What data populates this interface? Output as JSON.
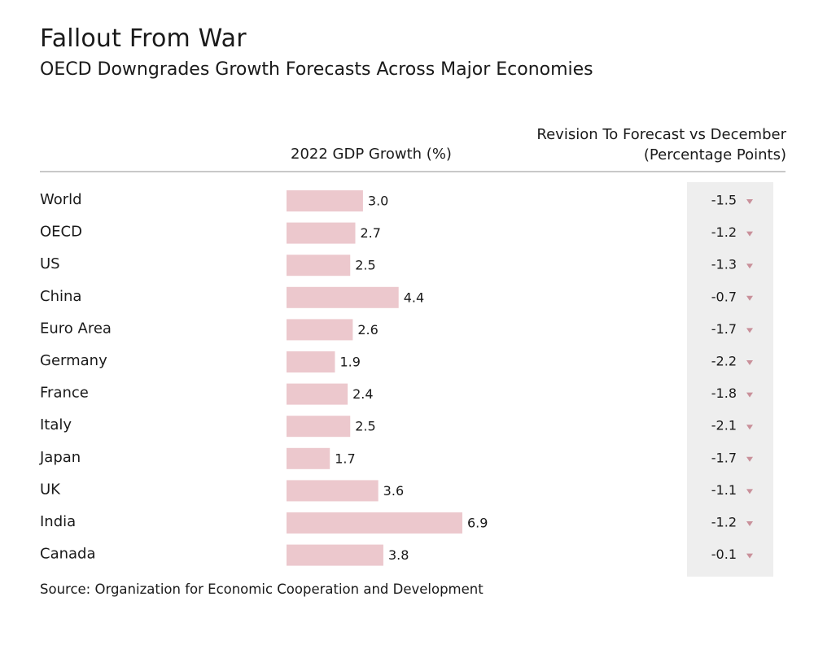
{
  "title": "Fallout From War",
  "subtitle": "OECD Downgrades Growth Forecasts Across Major Economies",
  "column_gdp": "2022 GDP Growth (%)",
  "column_revision_line1": "Revision To Forecast vs December",
  "column_revision_line2": "(Percentage Points)",
  "source": "Source: Organization for Economic Cooperation and Development",
  "colors": {
    "bar": "#ecc8cd",
    "arrow": "#c9909a",
    "revision_bg": "#eeeeee"
  },
  "chart_data": {
    "type": "bar",
    "orientation": "horizontal",
    "title": "Fallout From War",
    "subtitle": "OECD Downgrades Growth Forecasts Across Major Economies",
    "categories": [
      "World",
      "OECD",
      "US",
      "China",
      "Euro Area",
      "Germany",
      "France",
      "Italy",
      "Japan",
      "UK",
      "India",
      "Canada"
    ],
    "series": [
      {
        "name": "2022 GDP Growth (%)",
        "values": [
          3.0,
          2.7,
          2.5,
          4.4,
          2.6,
          1.9,
          2.4,
          2.5,
          1.7,
          3.6,
          6.9,
          3.8
        ],
        "labels": [
          "3.0",
          "2.7",
          "2.5",
          "4.4",
          "2.6",
          "1.9",
          "2.4",
          "2.5",
          "1.7",
          "3.6",
          "6.9",
          "3.8"
        ]
      },
      {
        "name": "Revision To Forecast vs December (Percentage Points)",
        "values": [
          -1.5,
          -1.2,
          -1.3,
          -0.7,
          -1.7,
          -2.2,
          -1.8,
          -2.1,
          -1.7,
          -1.1,
          -1.2,
          -0.1
        ],
        "labels": [
          "-1.5",
          "-1.2",
          "-1.3",
          "-0.7",
          "-1.7",
          "-2.2",
          "-1.8",
          "-2.1",
          "-1.7",
          "-1.1",
          "-1.2",
          "-0.1"
        ]
      }
    ],
    "xlim": [
      0,
      6.9
    ],
    "grid": false,
    "legend": "none"
  }
}
